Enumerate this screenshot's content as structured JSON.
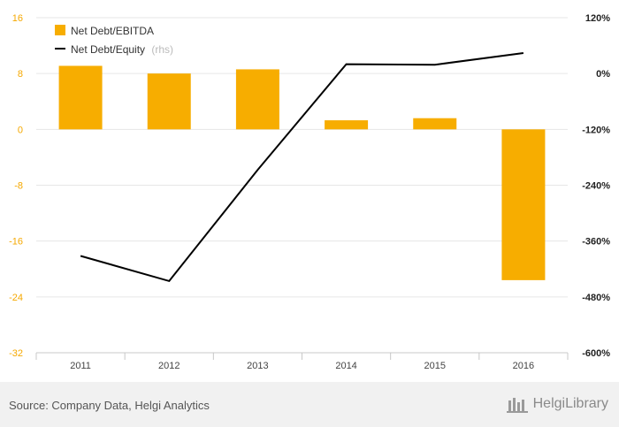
{
  "chart_data": {
    "type": "bar",
    "categories": [
      "2011",
      "2012",
      "2013",
      "2014",
      "2015",
      "2016"
    ],
    "series": [
      {
        "name": "Net Debt/EBITDA",
        "type": "bar",
        "axis": "left",
        "color": "#f7ad00",
        "values": [
          9.1,
          8.0,
          8.6,
          1.3,
          1.6,
          -21.6
        ]
      },
      {
        "name": "Net Debt/Equity",
        "name_suffix": "(rhs)",
        "type": "line",
        "axis": "right",
        "color": "#000000",
        "values": [
          -392,
          -446,
          -207,
          20,
          19,
          44
        ]
      }
    ],
    "y_left": {
      "ylim": [
        -32,
        16
      ],
      "ticks": [
        16,
        8,
        0,
        -8,
        -16,
        -24,
        -32
      ],
      "tick_labels": [
        "16",
        "8",
        "0",
        "-8",
        "-16",
        "-24",
        "-32"
      ]
    },
    "y_right": {
      "ylim": [
        -600,
        120
      ],
      "ticks": [
        120,
        0,
        -120,
        -240,
        -360,
        -480,
        -600
      ],
      "tick_labels": [
        "120%",
        "0%",
        "-120%",
        "-240%",
        "-360%",
        "-480%",
        "-600%"
      ]
    },
    "grid": true,
    "legend": "top-left"
  },
  "footer": {
    "source": "Source: Company Data, Helgi Analytics",
    "brand": "HelgiLibrary"
  },
  "colors": {
    "bar": "#f7ad00",
    "line": "#000000",
    "left_ticks": "#f5a800",
    "grid": "#e6e6e6"
  }
}
